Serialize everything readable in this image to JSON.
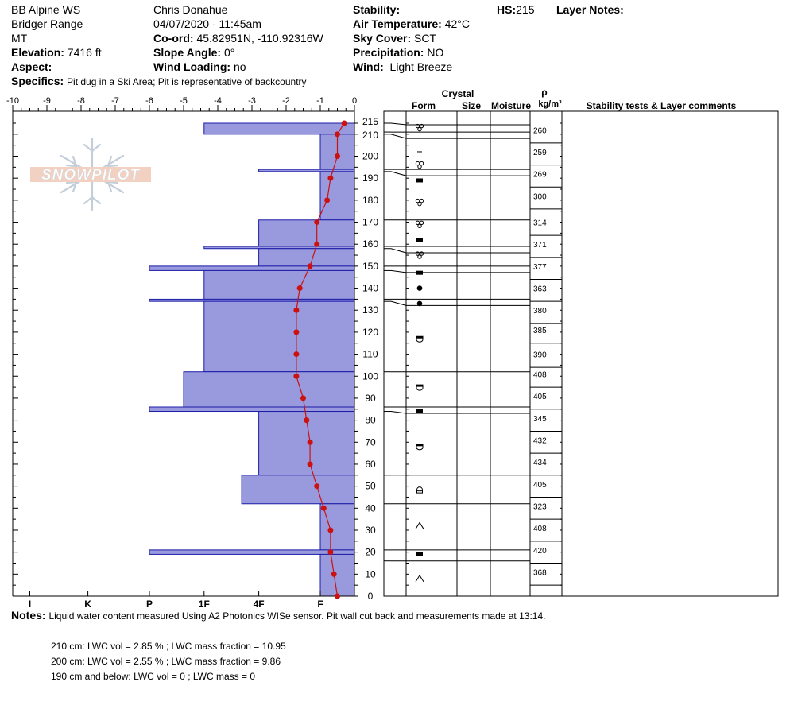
{
  "header": {
    "station": "BB Alpine WS",
    "range": "Bridger Range",
    "state": "MT",
    "elevation_label": "Elevation:",
    "elevation_value": "7416 ft",
    "aspect_label": "Aspect:",
    "observer": "Chris Donahue",
    "datetime": "04/07/2020 - 11:45am",
    "coord_label": "Co-ord:",
    "coord_value": "45.82951N, -110.92316W",
    "slope_label": "Slope Angle:",
    "slope_value": "0°",
    "wind_loading_label": "Wind Loading:",
    "wind_loading_value": "no",
    "stability_label": "Stability:",
    "air_temp_label": "Air Temperature:",
    "air_temp_value": "42°C",
    "sky_label": "Sky Cover:",
    "sky_value": "SCT",
    "precip_label": "Precipitation:",
    "precip_value": "NO",
    "wind_label": "Wind:",
    "wind_value": "Light Breeze",
    "hs_label": "HS:",
    "hs_value": "215",
    "layer_notes_label": "Layer Notes:",
    "specifics_label": "Specifics:",
    "specifics_value": "Pit dug in a Ski Area; Pit is representative of backcountry"
  },
  "logo_text": "SNOWPILOT",
  "columns": {
    "crystal": "Crystal",
    "form": "Form",
    "size": "Size",
    "moisture": "Moisture",
    "rho": "ρ",
    "density_unit": "kg/m³",
    "stability_tests": "Stability tests & Layer comments"
  },
  "notes": {
    "label": "Notes:",
    "text": "Liquid water content measured Using A2 Photonics WISe sensor. Pit wall cut back and measurements made at 13:14.",
    "lines": [
      "210 cm:  LWC vol = 2.85 %   ;  LWC mass fraction = 10.95",
      "200 cm:  LWC vol = 2.55 %   ;  LWC mass fraction =   9.86",
      "190 cm and below: LWC vol = 0   ; LWC mass = 0"
    ]
  },
  "chart_data": {
    "type": "snow_profile",
    "top_axis_ticks": [
      "-10",
      "-9",
      "-8",
      "-7",
      "-6",
      "-5",
      "-4",
      "-3",
      "-2",
      "-1",
      "0"
    ],
    "temperature_range": [
      -10,
      0
    ],
    "height_range": [
      0,
      215
    ],
    "y_ticks": [
      "215",
      "210",
      "200",
      "190",
      "180",
      "170",
      "160",
      "150",
      "140",
      "130",
      "120",
      "110",
      "100",
      "90",
      "80",
      "70",
      "60",
      "50",
      "40",
      "30",
      "20",
      "10",
      "0"
    ],
    "hardness_ticks": [
      "I",
      "K",
      "P",
      "1F",
      "4F",
      "F"
    ],
    "hardness_bars": [
      {
        "bottom": 210,
        "top": 215,
        "hardness": -4.4
      },
      {
        "bottom": 194,
        "top": 210,
        "hardness": -1
      },
      {
        "bottom": 193,
        "top": 194,
        "hardness": -2.8
      },
      {
        "bottom": 171,
        "top": 193,
        "hardness": -1
      },
      {
        "bottom": 159,
        "top": 171,
        "hardness": -2.8
      },
      {
        "bottom": 158,
        "top": 159,
        "hardness": -4.4
      },
      {
        "bottom": 150,
        "top": 158,
        "hardness": -2.8
      },
      {
        "bottom": 148,
        "top": 150,
        "hardness": -6
      },
      {
        "bottom": 135,
        "top": 148,
        "hardness": -4.4
      },
      {
        "bottom": 134,
        "top": 135,
        "hardness": -6
      },
      {
        "bottom": 102,
        "top": 134,
        "hardness": -4.4
      },
      {
        "bottom": 86,
        "top": 102,
        "hardness": -5
      },
      {
        "bottom": 84,
        "top": 86,
        "hardness": -6
      },
      {
        "bottom": 55,
        "top": 84,
        "hardness": -2.8
      },
      {
        "bottom": 42,
        "top": 55,
        "hardness": -3.3
      },
      {
        "bottom": 21,
        "top": 42,
        "hardness": -1
      },
      {
        "bottom": 19,
        "top": 21,
        "hardness": -6
      },
      {
        "bottom": 0,
        "top": 19,
        "hardness": -1
      }
    ],
    "temperature_profile": [
      {
        "height": 215,
        "temp": -0.3
      },
      {
        "height": 210,
        "temp": -0.5
      },
      {
        "height": 200,
        "temp": -0.5
      },
      {
        "height": 190,
        "temp": -0.7
      },
      {
        "height": 180,
        "temp": -0.8
      },
      {
        "height": 170,
        "temp": -1.1
      },
      {
        "height": 160,
        "temp": -1.1
      },
      {
        "height": 150,
        "temp": -1.3
      },
      {
        "height": 140,
        "temp": -1.6
      },
      {
        "height": 130,
        "temp": -1.7
      },
      {
        "height": 120,
        "temp": -1.7
      },
      {
        "height": 110,
        "temp": -1.7
      },
      {
        "height": 100,
        "temp": -1.7
      },
      {
        "height": 90,
        "temp": -1.5
      },
      {
        "height": 80,
        "temp": -1.4
      },
      {
        "height": 70,
        "temp": -1.3
      },
      {
        "height": 60,
        "temp": -1.3
      },
      {
        "height": 50,
        "temp": -1.1
      },
      {
        "height": 40,
        "temp": -0.9
      },
      {
        "height": 30,
        "temp": -0.7
      },
      {
        "height": 20,
        "temp": -0.7
      },
      {
        "height": 10,
        "temp": -0.6
      },
      {
        "height": 0,
        "temp": -0.5
      }
    ],
    "layer_boundaries": [
      0,
      16,
      21,
      42,
      55,
      84,
      86,
      102,
      134,
      135,
      148,
      150,
      158,
      159,
      171,
      193,
      194,
      210,
      211,
      215
    ],
    "crystal_forms": [
      {
        "height": 213,
        "form": "MFcr"
      },
      {
        "height": 202,
        "form": "DF"
      },
      {
        "height": 196,
        "form": "MFcr"
      },
      {
        "height": 189,
        "form": "IF"
      },
      {
        "height": 179,
        "form": "MFcr"
      },
      {
        "height": 169,
        "form": "MFcr"
      },
      {
        "height": 162,
        "form": "IF"
      },
      {
        "height": 155,
        "form": "MFcr"
      },
      {
        "height": 147,
        "form": "IF"
      },
      {
        "height": 140,
        "form": "PP"
      },
      {
        "height": 133,
        "form": "PP"
      },
      {
        "height": 117,
        "form": "FCxr"
      },
      {
        "height": 95,
        "form": "FCxr"
      },
      {
        "height": 84,
        "form": "IF"
      },
      {
        "height": 68,
        "form": "FCxr"
      },
      {
        "height": 48,
        "form": "FC"
      },
      {
        "height": 32,
        "form": "DH"
      },
      {
        "height": 19,
        "form": "IF"
      },
      {
        "height": 8,
        "form": "DH"
      }
    ],
    "densities": [
      {
        "height": 212,
        "value": "260"
      },
      {
        "height": 202,
        "value": "259"
      },
      {
        "height": 192,
        "value": "269"
      },
      {
        "height": 182,
        "value": "300"
      },
      {
        "height": 170,
        "value": "314"
      },
      {
        "height": 160,
        "value": "371"
      },
      {
        "height": 150,
        "value": "377"
      },
      {
        "height": 140,
        "value": "363"
      },
      {
        "height": 130,
        "value": "380"
      },
      {
        "height": 121,
        "value": "385"
      },
      {
        "height": 110,
        "value": "390"
      },
      {
        "height": 101,
        "value": "408"
      },
      {
        "height": 91,
        "value": "405"
      },
      {
        "height": 81,
        "value": "345"
      },
      {
        "height": 71,
        "value": "432"
      },
      {
        "height": 61,
        "value": "434"
      },
      {
        "height": 51,
        "value": "405"
      },
      {
        "height": 41,
        "value": "323"
      },
      {
        "height": 31,
        "value": "408"
      },
      {
        "height": 21,
        "value": "420"
      },
      {
        "height": 11,
        "value": "368"
      }
    ],
    "colors": {
      "hardness_fill": "#9999dd",
      "hardness_stroke": "#1c1ca8",
      "temperature_line": "#cc1111",
      "axis": "#000000"
    }
  }
}
